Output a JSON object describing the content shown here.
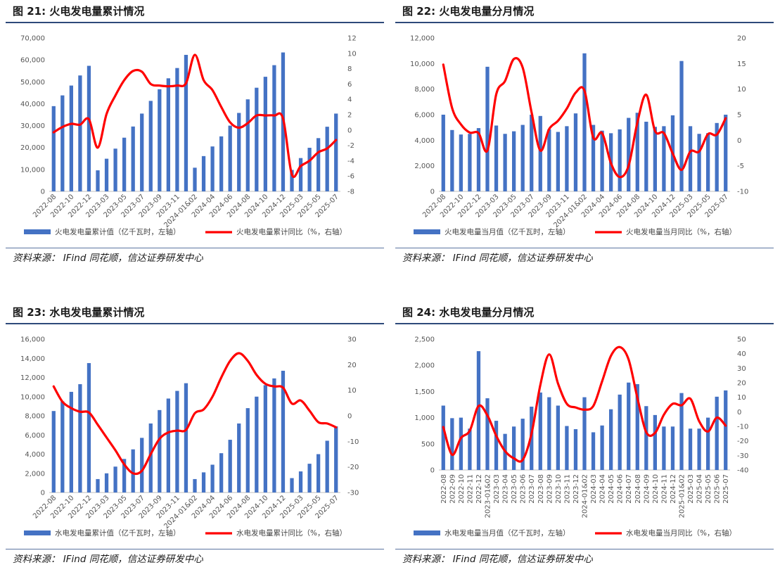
{
  "source_text": "资料来源： IFind 同花顺，信达证券研发中心",
  "colors": {
    "bar": "#4472c4",
    "line": "#ff0000",
    "rule": "#2e4a7a"
  },
  "panels": [
    {
      "title": "图 21:  火电发电量累计情况",
      "source": "资料来源： IFind 同花顺，信达证券研发中心",
      "chart_data": {
        "type": "bar",
        "title": "火电发电量累计情况",
        "categories": [
          "2022-08",
          "2022-09",
          "2022-10",
          "2022-11",
          "2022-12",
          "2023-02",
          "2023-03",
          "2023-04",
          "2023-05",
          "2023-06",
          "2023-07",
          "2023-08",
          "2023-09",
          "2023-10",
          "2023-11",
          "2023-12",
          "2024-01&02",
          "2024-03",
          "2024-04",
          "2024-05",
          "2024-06",
          "2024-07",
          "2024-08",
          "2024-09",
          "2024-10",
          "2024-11",
          "2024-12",
          "2025-01&02",
          "2025-03",
          "2025-04",
          "2025-05",
          "2025-06",
          "2025-07"
        ],
        "x_tick_labels": [
          "2022-08",
          "2022-10",
          "2022-12",
          "2023-03",
          "2023-05",
          "2023-07",
          "2023-09",
          "2023-11",
          "2024-01&02",
          "2024-04",
          "2024-06",
          "2024-08",
          "2024-10",
          "2024-12",
          "2025-03",
          "2025-05",
          "2025-07"
        ],
        "x_tick_indices": [
          0,
          2,
          4,
          6,
          8,
          10,
          12,
          14,
          16,
          18,
          20,
          22,
          24,
          26,
          28,
          30,
          32
        ],
        "series": [
          {
            "name": "火电发电量累计值（亿千瓦时，左轴）",
            "axis": "left",
            "kind": "bar",
            "values": [
              38900,
              43800,
              48300,
              52900,
              57300,
              9600,
              14900,
              19500,
              24500,
              29600,
              35500,
              41300,
              46600,
              51600,
              56300,
              62300,
              10800,
              16100,
              20500,
              25100,
              30000,
              35800,
              42000,
              47300,
              52300,
              57600,
              63400,
              9800,
              15200,
              19900,
              24300,
              29500,
              35500
            ]
          },
          {
            "name": "火电发电量累计同比（%，右轴）",
            "axis": "right",
            "kind": "line",
            "values": [
              -0.3,
              0.4,
              0.8,
              0.7,
              1.4,
              -2.3,
              2.1,
              4.5,
              6.5,
              7.7,
              7.6,
              6.0,
              5.8,
              5.7,
              5.8,
              6.1,
              9.8,
              6.5,
              5.2,
              3.0,
              1.0,
              0.3,
              0.9,
              1.9,
              1.9,
              1.9,
              1.5,
              -5.8,
              -4.7,
              -4.0,
              -2.9,
              -2.4,
              -1.3
            ]
          }
        ],
        "yleft_ticks": [
          "0",
          "10,000",
          "20,000",
          "30,000",
          "40,000",
          "50,000",
          "60,000",
          "70,000"
        ],
        "yleft_lim": [
          0,
          70000
        ],
        "yright_ticks": [
          "-8",
          "-6",
          "-4",
          "-2",
          "0",
          "2",
          "4",
          "6",
          "8",
          "10",
          "12"
        ],
        "yright_lim": [
          -8,
          12
        ],
        "legend": [
          "火电发电量累计值（亿千瓦时，左轴）",
          "火电发电量累计同比（%，右轴）"
        ],
        "legend_position": "bottom"
      }
    },
    {
      "title": "图 22:  火电发电量分月情况",
      "source": "资料来源： IFind 同花顺，信达证券研发中心",
      "chart_data": {
        "type": "bar",
        "title": "火电发电量分月情况",
        "categories": [
          "2022-08",
          "2022-09",
          "2022-10",
          "2022-11",
          "2022-12",
          "2023-01&02",
          "2023-03",
          "2023-04",
          "2023-05",
          "2023-06",
          "2023-07",
          "2023-08",
          "2023-09",
          "2023-10",
          "2023-11",
          "2023-12",
          "2024-01&02",
          "2024-03",
          "2024-04",
          "2024-05",
          "2024-06",
          "2024-07",
          "2024-08",
          "2024-09",
          "2024-10",
          "2024-11",
          "2024-12",
          "2025-01&02",
          "2025-03",
          "2025-04",
          "2025-05",
          "2025-06",
          "2025-07"
        ],
        "x_tick_labels": [
          "2022-08",
          "2022-10",
          "2022-12",
          "2023-03",
          "2023-05",
          "2023-07",
          "2023-09",
          "2023-11",
          "2024-01&02",
          "2024-04",
          "2024-06",
          "2024-08",
          "2024-10",
          "2024-12",
          "2025-03",
          "2025-05",
          "2025-07"
        ],
        "x_tick_indices": [
          0,
          2,
          4,
          6,
          8,
          10,
          12,
          14,
          16,
          18,
          20,
          22,
          24,
          26,
          28,
          30,
          32
        ],
        "series": [
          {
            "name": "火电发电量当月值（亿千瓦时，左轴）",
            "axis": "left",
            "kind": "bar",
            "values": [
              6000,
              4800,
              4450,
              4500,
              4950,
              9750,
              5150,
              4500,
              4700,
              5200,
              6000,
              5900,
              4850,
              4650,
              5100,
              6100,
              10800,
              5200,
              4750,
              4550,
              4850,
              5750,
              6150,
              5450,
              5050,
              5100,
              5950,
              10200,
              5100,
              4500,
              4550,
              5350,
              6000
            ]
          },
          {
            "name": "火电发电量当月同比（%，右轴）",
            "axis": "right",
            "kind": "line",
            "values": [
              14.8,
              6.3,
              3.1,
              1.5,
              1.4,
              -2.0,
              9.0,
              11.6,
              15.9,
              14.2,
              5.5,
              -2.0,
              2.2,
              3.8,
              6.2,
              9.3,
              9.7,
              0.5,
              1.4,
              -4.5,
              -7.2,
              -5.0,
              3.5,
              8.9,
              1.8,
              1.4,
              -2.6,
              -5.8,
              -2.2,
              -2.2,
              1.2,
              1.1,
              4.3
            ]
          }
        ],
        "yleft_ticks": [
          "0",
          "2,000",
          "4,000",
          "6,000",
          "8,000",
          "10,000",
          "12,000"
        ],
        "yleft_lim": [
          0,
          12000
        ],
        "yright_ticks": [
          "-10",
          "-5",
          "0",
          "5",
          "10",
          "15",
          "20"
        ],
        "yright_lim": [
          -10,
          20
        ],
        "legend": [
          "火电发电量当月值（亿千瓦时，左轴）",
          "火电发电量当月同比（%，右轴）"
        ],
        "legend_position": "bottom"
      }
    },
    {
      "title": "图 23:  水电发电量累计情况",
      "source": "资料来源： IFind 同花顺，信达证券研发中心",
      "chart_data": {
        "type": "bar",
        "title": "水电发电量累计情况",
        "categories": [
          "2022-08",
          "2022-09",
          "2022-10",
          "2022-11",
          "2022-12",
          "2023-02",
          "2023-03",
          "2023-04",
          "2023-05",
          "2023-06",
          "2023-07",
          "2023-08",
          "2023-09",
          "2023-10",
          "2023-11",
          "2023-12",
          "2024-01&02",
          "2024-03",
          "2024-04",
          "2024-05",
          "2024-06",
          "2024-07",
          "2024-08",
          "2024-09",
          "2024-10",
          "2024-11",
          "2024-12",
          "2025-01&02",
          "2025-03",
          "2025-04",
          "2025-05",
          "2025-06",
          "2025-07"
        ],
        "x_tick_labels": [
          "2022-08",
          "2022-10",
          "2022-12",
          "2023-03",
          "2023-05",
          "2023-07",
          "2023-09",
          "2023-11",
          "2024-01&02",
          "2024-04",
          "2024-06",
          "2024-08",
          "2024-10",
          "2024-12",
          "2025-03",
          "2025-05",
          "2025-07"
        ],
        "x_tick_indices": [
          0,
          2,
          4,
          6,
          8,
          10,
          12,
          14,
          16,
          18,
          20,
          22,
          24,
          26,
          28,
          30,
          32
        ],
        "series": [
          {
            "name": "水电发电量累计值（亿千瓦时，左轴）",
            "axis": "left",
            "kind": "bar",
            "values": [
              8500,
              9500,
              10500,
              11300,
              13500,
              1400,
              2000,
              2700,
              3500,
              4500,
              5700,
              7200,
              8600,
              9800,
              10600,
              11400,
              1400,
              2100,
              2900,
              4100,
              5500,
              7200,
              8800,
              10000,
              11200,
              11900,
              12700,
              1500,
              2200,
              3000,
              4000,
              5400,
              6900
            ]
          },
          {
            "name": "水电发电量累计同比（%，右轴）",
            "axis": "right",
            "kind": "line",
            "values": [
              11.5,
              5.5,
              3.0,
              1.6,
              1.3,
              -3.5,
              -8.5,
              -13.5,
              -19.0,
              -22.5,
              -21.5,
              -15.0,
              -9.0,
              -6.5,
              -5.8,
              -5.5,
              1.0,
              2.5,
              7.5,
              15.0,
              21.5,
              24.5,
              21.5,
              16.0,
              12.5,
              11.5,
              11.0,
              4.8,
              6.0,
              2.0,
              -2.5,
              -3.0,
              -4.5
            ]
          }
        ],
        "yleft_ticks": [
          "0",
          "2,000",
          "4,000",
          "6,000",
          "8,000",
          "10,000",
          "12,000",
          "14,000",
          "16,000"
        ],
        "yleft_lim": [
          0,
          16000
        ],
        "yright_ticks": [
          "-30",
          "-20",
          "-10",
          "0",
          "10",
          "20",
          "30"
        ],
        "yright_lim": [
          -30,
          30
        ],
        "legend": [
          "水电发电量累计值（亿千瓦时，左轴）",
          "水电发电量累计同比（%，右轴）"
        ],
        "legend_position": "bottom"
      }
    },
    {
      "title": "图 24:  水电发电量分月情况",
      "source": "资料来源： IFind 同花顺，信达证券研发中心",
      "chart_data": {
        "type": "bar",
        "title": "水电发电量分月情况",
        "categories": [
          "2022-08",
          "2022-09",
          "2022-10",
          "2022-11",
          "2022-12",
          "2023-01&02",
          "2023-03",
          "2023-04",
          "2023-05",
          "2023-06",
          "2023-07",
          "2023-08",
          "2023-09",
          "2023-10",
          "2023-11",
          "2023-12",
          "2024-01&02",
          "2024-03",
          "2024-04",
          "2024-05",
          "2024-06",
          "2024-07",
          "2024-08",
          "2024-09",
          "2024-10",
          "2024-11",
          "2024-12",
          "2025-01&02",
          "2025-03",
          "2025-04",
          "2025-05",
          "2025-06",
          "2025-07"
        ],
        "x_tick_labels": [
          "2022-08",
          "2022-09",
          "2022-10",
          "2022-11",
          "2022-12",
          "2023-01&02",
          "2023-03",
          "2023-04",
          "2023-05",
          "2023-06",
          "2023-07",
          "2023-08",
          "2023-09",
          "2023-10",
          "2023-11",
          "2023-12",
          "2024-01&02",
          "2024-03",
          "2024-04",
          "2024-05",
          "2024-06",
          "2024-07",
          "2024-08",
          "2024-09",
          "2024-10",
          "2024-11",
          "2024-12",
          "2025-01&02",
          "2025-03",
          "2025-04",
          "2025-05",
          "2025-06",
          "2025-07"
        ],
        "x_tick_indices": [
          0,
          1,
          2,
          3,
          4,
          5,
          6,
          7,
          8,
          9,
          10,
          11,
          12,
          13,
          14,
          15,
          16,
          17,
          18,
          19,
          20,
          21,
          22,
          23,
          24,
          25,
          26,
          27,
          28,
          29,
          30,
          31,
          32
        ],
        "series": [
          {
            "name": "水电发电量当月值（亿千瓦时，左轴）",
            "axis": "left",
            "kind": "bar",
            "values": [
              1230,
              990,
              1000,
              790,
              2270,
              1370,
              940,
              690,
              830,
              980,
              1210,
              1480,
              1390,
              1230,
              840,
              780,
              1390,
              720,
              850,
              1160,
              1440,
              1670,
              1640,
              1220,
              1050,
              830,
              830,
              1470,
              790,
              790,
              1000,
              1400,
              1520
            ]
          },
          {
            "name": "水电发电量当月同比（%，右轴）",
            "axis": "right",
            "kind": "line",
            "values": [
              -10.5,
              -29.5,
              -18.0,
              -13.0,
              4.0,
              -2.5,
              -16.5,
              -27.0,
              -32.0,
              -33.0,
              -15.0,
              18.5,
              39.5,
              19.5,
              5.5,
              3.0,
              1.5,
              4.0,
              21.0,
              38.5,
              44.5,
              36.0,
              9.5,
              -14.0,
              -14.5,
              -2.0,
              5.5,
              4.5,
              9.0,
              -6.5,
              -13.5,
              -4.0,
              -9.5
            ]
          }
        ],
        "yleft_ticks": [
          "0",
          "500",
          "1,000",
          "1,500",
          "2,000",
          "2,500"
        ],
        "yleft_lim": [
          0,
          2500
        ],
        "yright_ticks": [
          "-40",
          "-30",
          "-20",
          "-10",
          "0",
          "10",
          "20",
          "30",
          "40",
          "50"
        ],
        "yright_lim": [
          -40,
          50
        ],
        "legend": [
          "水电发电量当月值（亿千瓦时，左轴）",
          "水电发电量当月同比（%，右轴）"
        ],
        "legend_position": "bottom"
      }
    }
  ]
}
